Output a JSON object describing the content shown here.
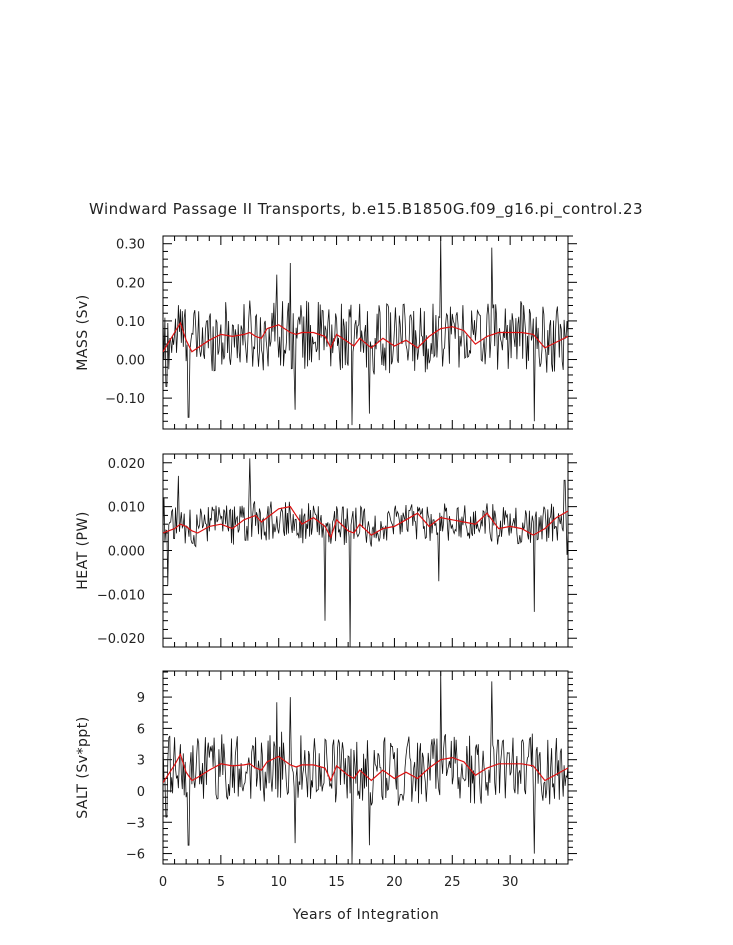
{
  "title": "Windward Passage II Transports, b.e15.B1850G.f09_g16.pi_control.23",
  "xlabel": "Years of Integration",
  "colors": {
    "raw": "#111111",
    "smooth": "#dd1111",
    "frame": "#000000"
  },
  "chart_data": [
    {
      "type": "line",
      "ylabel": "MASS (Sv)",
      "xlim": [
        0,
        35
      ],
      "ylim": [
        -0.18,
        0.32
      ],
      "xticks": [
        0,
        5,
        10,
        15,
        20,
        25,
        30
      ],
      "yticks": [
        -0.1,
        0.0,
        0.1,
        0.2,
        0.3
      ],
      "ytick_labels": [
        "−0.10",
        "0.00",
        "0.10",
        "0.20",
        "0.30"
      ],
      "smooth": {
        "x": [
          0,
          1,
          1.5,
          2,
          2.5,
          3,
          4,
          5,
          6,
          7,
          7.5,
          8,
          8.5,
          9,
          10,
          11,
          11.5,
          12,
          13,
          14,
          14.5,
          15,
          16,
          16.5,
          17,
          18,
          19,
          20,
          21,
          22,
          23,
          24,
          25,
          26,
          27,
          28,
          29,
          30,
          31,
          32,
          33,
          34,
          35
        ],
        "y": [
          0.02,
          0.07,
          0.095,
          0.05,
          0.02,
          0.03,
          0.05,
          0.065,
          0.06,
          0.065,
          0.07,
          0.06,
          0.055,
          0.08,
          0.09,
          0.07,
          0.065,
          0.07,
          0.07,
          0.06,
          0.03,
          0.065,
          0.045,
          0.035,
          0.055,
          0.03,
          0.055,
          0.035,
          0.05,
          0.03,
          0.06,
          0.08,
          0.085,
          0.075,
          0.04,
          0.06,
          0.07,
          0.07,
          0.07,
          0.065,
          0.03,
          0.045,
          0.06
        ]
      },
      "series": [
        {
          "name": "",
          "scale": 0.09,
          "offset": 0.06,
          "spikes": [
            [
              0.3,
              -0.07
            ],
            [
              2.2,
              -0.15
            ],
            [
              9.8,
              0.22
            ],
            [
              11,
              0.25
            ],
            [
              11.4,
              -0.13
            ],
            [
              16.3,
              -0.17
            ],
            [
              17.8,
              -0.14
            ],
            [
              24,
              0.32
            ],
            [
              28.4,
              0.29
            ],
            [
              32.1,
              -0.16
            ]
          ]
        }
      ]
    },
    {
      "type": "line",
      "ylabel": "HEAT (PW)",
      "xlim": [
        0,
        35
      ],
      "ylim": [
        -0.022,
        0.022
      ],
      "xticks": [
        0,
        5,
        10,
        15,
        20,
        25,
        30
      ],
      "yticks": [
        -0.02,
        -0.01,
        0.0,
        0.01,
        0.02
      ],
      "ytick_labels": [
        "−0.020",
        "−0.010",
        "0.000",
        "0.010",
        "0.020"
      ],
      "smooth": {
        "x": [
          0,
          1,
          1.5,
          2,
          2.5,
          3,
          4,
          5,
          6,
          7,
          7.5,
          8,
          8.5,
          9,
          10,
          11,
          11.5,
          12,
          13,
          14,
          14.5,
          15,
          16,
          16.5,
          17,
          18,
          19,
          20,
          21,
          22,
          23,
          24,
          25,
          26,
          27,
          28,
          29,
          30,
          31,
          32,
          33,
          34,
          35
        ],
        "y": [
          0.004,
          0.005,
          0.006,
          0.0055,
          0.0045,
          0.004,
          0.0055,
          0.006,
          0.005,
          0.007,
          0.0075,
          0.008,
          0.0065,
          0.0075,
          0.0095,
          0.01,
          0.008,
          0.006,
          0.0075,
          0.0055,
          0.003,
          0.007,
          0.0045,
          0.004,
          0.006,
          0.0035,
          0.005,
          0.0055,
          0.007,
          0.0085,
          0.0055,
          0.0075,
          0.007,
          0.0065,
          0.006,
          0.0085,
          0.005,
          0.0055,
          0.005,
          0.0035,
          0.005,
          0.0075,
          0.009
        ]
      },
      "series": [
        {
          "name": "",
          "scale": 0.0045,
          "offset": 0.006,
          "spikes": [
            [
              0.1,
              0.012
            ],
            [
              0.4,
              -0.008
            ],
            [
              1.3,
              0.017
            ],
            [
              7.5,
              0.021
            ],
            [
              14,
              -0.016
            ],
            [
              16.2,
              -0.022
            ],
            [
              23.8,
              -0.007
            ],
            [
              32.1,
              -0.014
            ],
            [
              34.7,
              0.016
            ],
            [
              34.9,
              -0.001
            ]
          ]
        }
      ]
    },
    {
      "type": "line",
      "ylabel": "SALT (Sv*ppt)",
      "xlim": [
        0,
        35
      ],
      "ylim": [
        -7,
        11.5
      ],
      "xticks": [
        0,
        5,
        10,
        15,
        20,
        25,
        30
      ],
      "yticks": [
        -6,
        -3,
        0,
        3,
        6,
        9
      ],
      "ytick_labels": [
        "−6",
        "−3",
        "0",
        "3",
        "6",
        "9"
      ],
      "smooth": {
        "x": [
          0,
          1,
          1.5,
          2,
          2.5,
          3,
          4,
          5,
          6,
          7,
          7.5,
          8,
          8.5,
          9,
          10,
          11,
          11.5,
          12,
          13,
          14,
          14.5,
          15,
          16,
          16.5,
          17,
          18,
          19,
          20,
          21,
          22,
          23,
          24,
          25,
          26,
          27,
          28,
          29,
          30,
          31,
          32,
          33,
          34,
          35
        ],
        "y": [
          0.8,
          2.5,
          3.5,
          1.8,
          1.0,
          1.3,
          2.0,
          2.6,
          2.4,
          2.5,
          2.6,
          2.2,
          2.0,
          2.8,
          3.3,
          2.5,
          2.3,
          2.5,
          2.5,
          2.2,
          1.0,
          2.4,
          1.5,
          1.2,
          2.0,
          1.0,
          2.0,
          1.2,
          1.8,
          1.2,
          2.2,
          3.0,
          3.2,
          2.8,
          1.5,
          2.2,
          2.6,
          2.6,
          2.6,
          2.4,
          1.0,
          1.6,
          2.2
        ]
      },
      "series": [
        {
          "name": "",
          "scale": 3.3,
          "offset": 2.2,
          "spikes": [
            [
              0.3,
              -2.5
            ],
            [
              2.2,
              -5.2
            ],
            [
              9.8,
              8.5
            ],
            [
              11,
              9
            ],
            [
              11.4,
              -5
            ],
            [
              16.3,
              -7
            ],
            [
              17.8,
              -5.2
            ],
            [
              24,
              11.5
            ],
            [
              28.4,
              10.5
            ],
            [
              32.1,
              -6
            ]
          ]
        }
      ]
    }
  ]
}
